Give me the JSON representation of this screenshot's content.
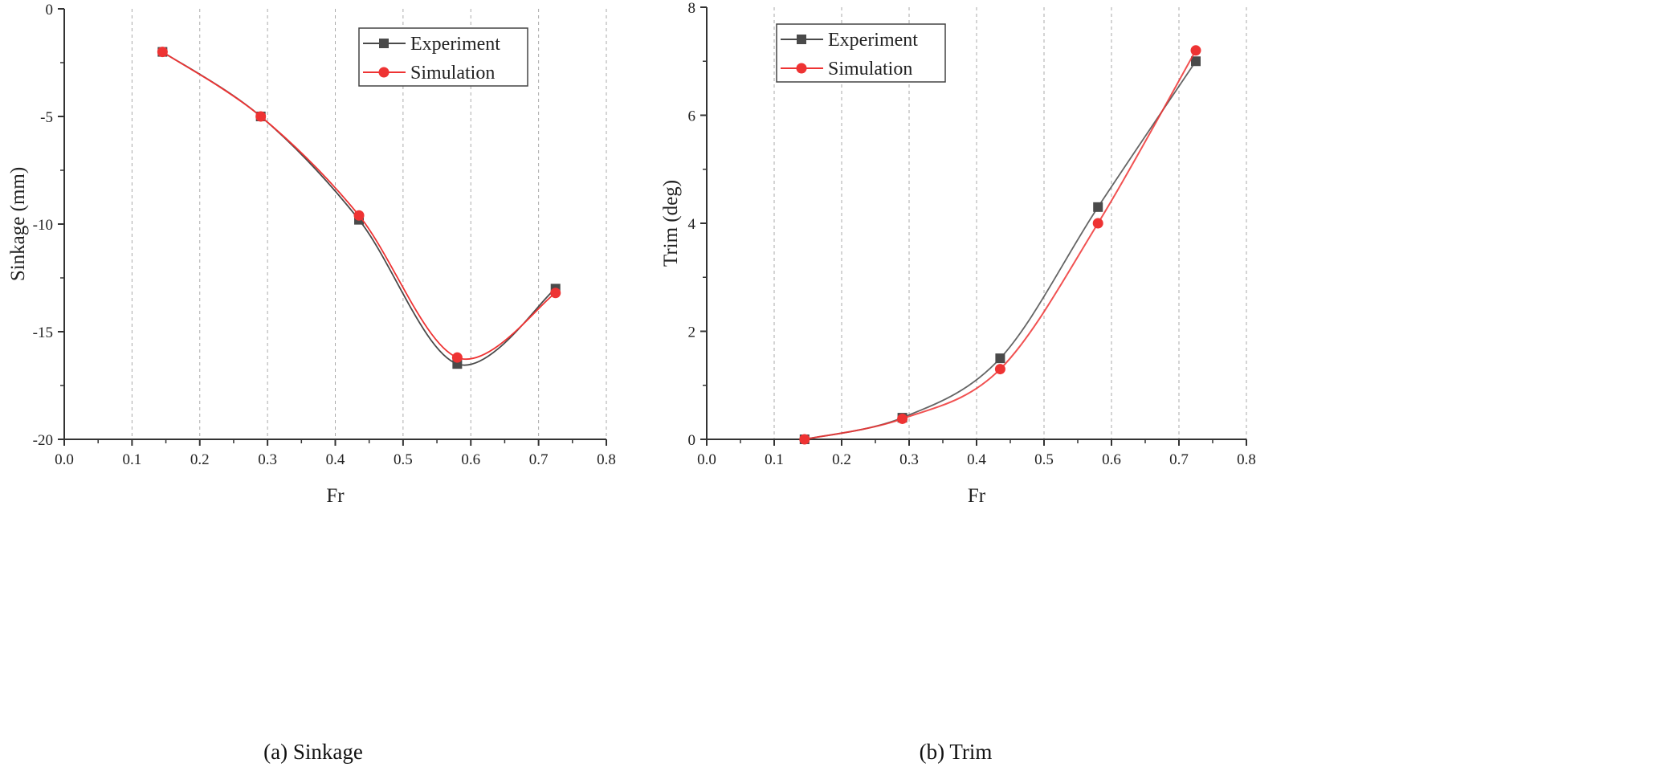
{
  "chart_data": [
    {
      "type": "line",
      "caption": "(a) Sinkage",
      "xlabel": "Fr",
      "ylabel": "Sinkage (mm)",
      "xlim": [
        0.0,
        0.8
      ],
      "ylim": [
        -20,
        0
      ],
      "xticks": [
        "0.0",
        "0.1",
        "0.2",
        "0.3",
        "0.4",
        "0.5",
        "0.6",
        "0.7",
        "0.8"
      ],
      "yticks": [
        "0",
        "-5",
        "-10",
        "-15",
        "-20"
      ],
      "grid": "vertical dashed",
      "legend_position": "top-right",
      "x": [
        0.145,
        0.29,
        0.435,
        0.58,
        0.725
      ],
      "series": [
        {
          "name": "Experiment",
          "marker": "square",
          "color": "#4a4a4a",
          "values": [
            -2.0,
            -5.0,
            -9.8,
            -16.5,
            -13.0
          ]
        },
        {
          "name": "Simulation",
          "marker": "circle",
          "color": "#ee3333",
          "values": [
            -2.0,
            -5.0,
            -9.6,
            -16.2,
            -13.2
          ]
        }
      ]
    },
    {
      "type": "line",
      "caption": "(b) Trim",
      "xlabel": "Fr",
      "ylabel": "Trim (deg)",
      "xlim": [
        0.0,
        0.8
      ],
      "ylim": [
        0,
        8
      ],
      "xticks": [
        "0.0",
        "0.1",
        "0.2",
        "0.3",
        "0.4",
        "0.5",
        "0.6",
        "0.7",
        "0.8"
      ],
      "yticks": [
        "0",
        "2",
        "4",
        "6",
        "8"
      ],
      "grid": "vertical dashed",
      "legend_position": "top-left",
      "x": [
        0.145,
        0.29,
        0.435,
        0.58,
        0.725
      ],
      "series": [
        {
          "name": "Experiment",
          "marker": "square",
          "color": "#4a4a4a",
          "values": [
            0.0,
            0.4,
            1.5,
            4.3,
            7.0
          ]
        },
        {
          "name": "Simulation",
          "marker": "circle",
          "color": "#ee3333",
          "values": [
            0.0,
            0.38,
            1.3,
            4.0,
            7.2
          ]
        }
      ]
    }
  ]
}
